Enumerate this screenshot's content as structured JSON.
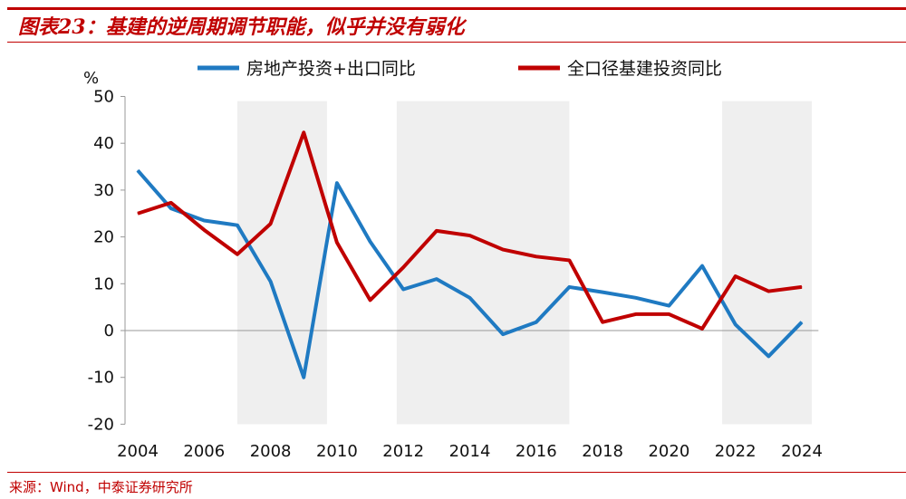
{
  "title": "图表23：基建的逆周期调节职能，似乎并没有弱化",
  "source": "来源：Wind，中泰证券研究所",
  "colors": {
    "accent": "#c00000",
    "blue": "#1f7ac2",
    "red": "#c00000",
    "shade": "#efefef"
  },
  "chart_data": {
    "type": "line",
    "ylabel": "%",
    "ylim": [
      -20,
      50
    ],
    "yticks": [
      "50",
      "40",
      "30",
      "20",
      "10",
      "0",
      "-10",
      "-20"
    ],
    "ytick_values": [
      50,
      40,
      30,
      20,
      10,
      0,
      -10,
      -20
    ],
    "xlim": [
      2004,
      2024
    ],
    "xticks": [
      "2004",
      "2006",
      "2008",
      "2010",
      "2012",
      "2014",
      "2016",
      "2018",
      "2020",
      "2022",
      "2024"
    ],
    "xtick_values": [
      2004,
      2006,
      2008,
      2010,
      2012,
      2014,
      2016,
      2018,
      2020,
      2022,
      2024
    ],
    "legend_position": "top",
    "shaded_periods": [
      [
        2007,
        2009.7
      ],
      [
        2011.8,
        2017
      ],
      [
        2021.6,
        2024.3
      ]
    ],
    "x": [
      2004,
      2005,
      2006,
      2007,
      2008,
      2009,
      2010,
      2011,
      2012,
      2013,
      2014,
      2015,
      2016,
      2017,
      2018,
      2019,
      2020,
      2021,
      2022,
      2023,
      2024
    ],
    "series": [
      {
        "name": "房地产投资+出口同比",
        "color": "#1f7ac2",
        "values": [
          34.2,
          26.1,
          23.5,
          22.5,
          10.5,
          -10,
          31.5,
          19,
          8.8,
          11,
          7,
          -0.8,
          1.8,
          9.3,
          8.2,
          7,
          5.3,
          13.8,
          1.3,
          -5.5,
          1.8
        ]
      },
      {
        "name": "全口径基建投资同比",
        "color": "#c00000",
        "values": [
          25,
          27.3,
          21.5,
          16.3,
          22.8,
          42.3,
          18.8,
          6.5,
          13.5,
          21.3,
          20.3,
          17.3,
          15.8,
          15,
          1.8,
          3.5,
          3.5,
          0.4,
          11.6,
          8.4,
          9.3
        ]
      }
    ]
  }
}
